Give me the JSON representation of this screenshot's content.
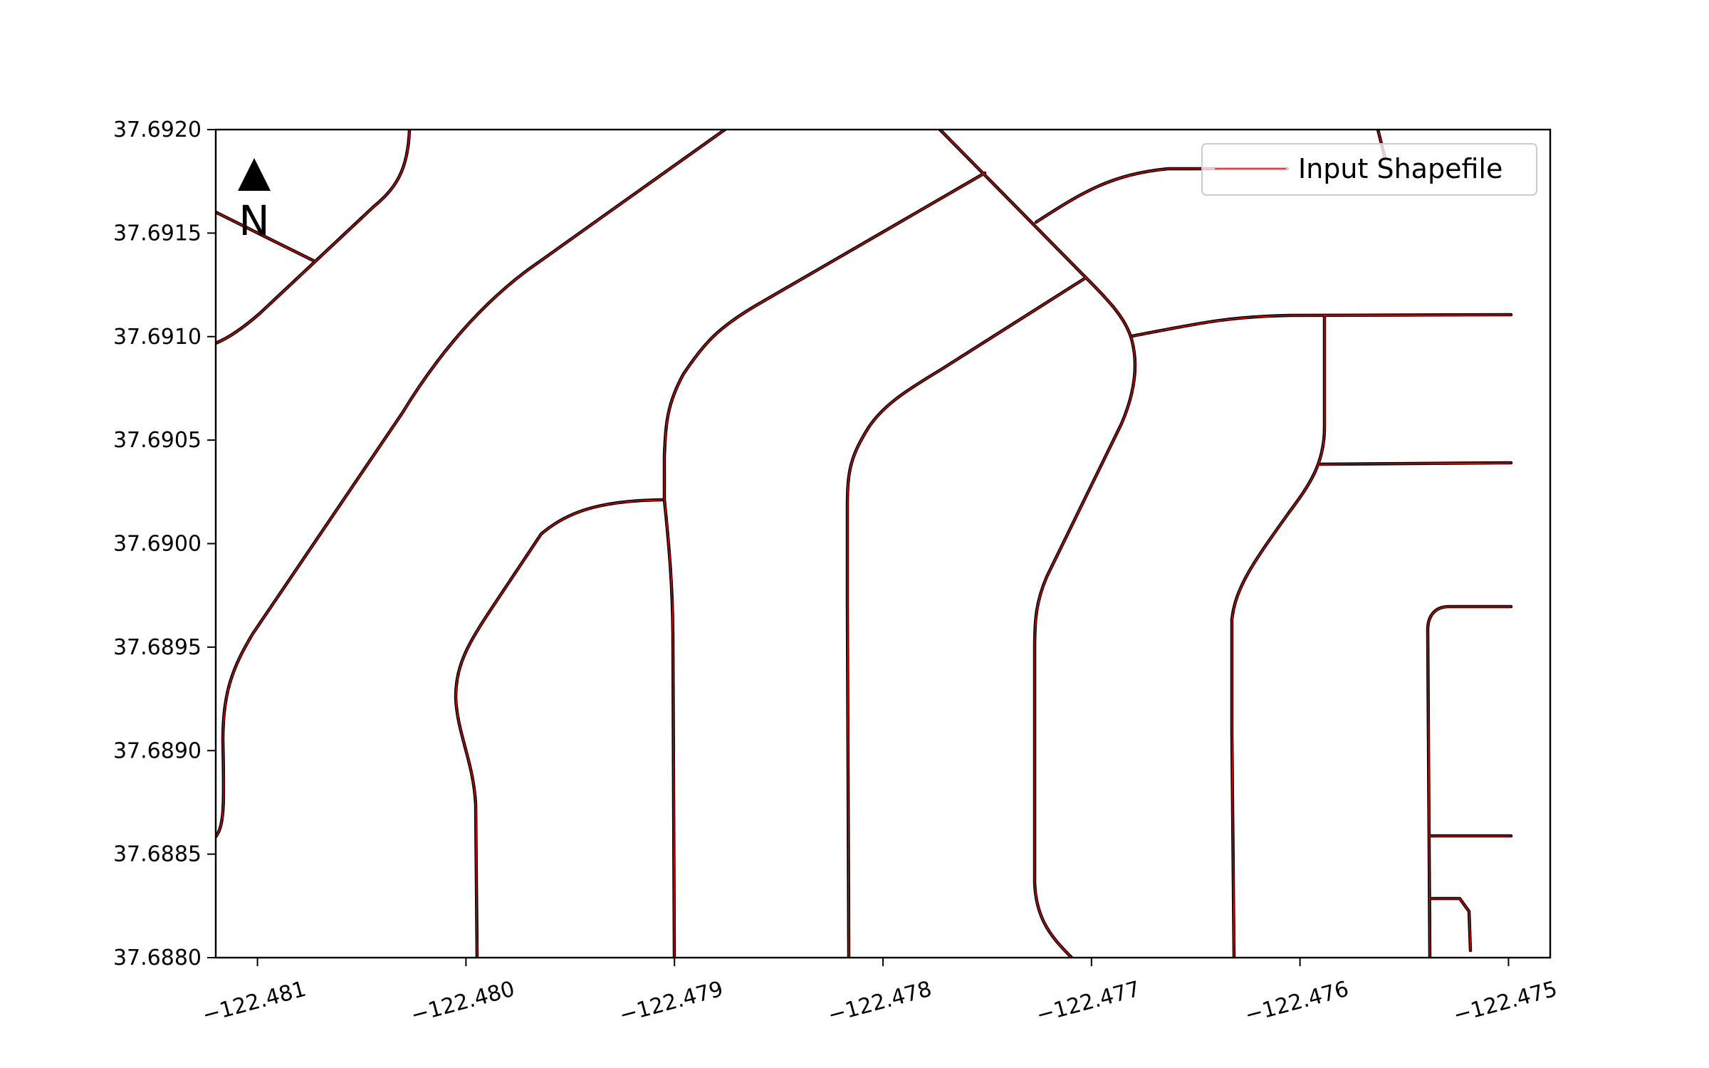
{
  "map": {
    "north_label": "N",
    "legend_label": "Input Shapefile",
    "line_color": "#ff0000",
    "casing_color": "#000000",
    "x_ticks": [
      "−122.481",
      "−122.480",
      "−122.479",
      "−122.478",
      "−122.477",
      "−122.476",
      "−122.475"
    ],
    "y_ticks": [
      "37.6920",
      "37.6915",
      "37.6910",
      "37.6905",
      "37.6900",
      "37.6895",
      "37.6890",
      "37.6885",
      "37.6880"
    ],
    "x_range": [
      -122.4812,
      -122.4748
    ],
    "y_range": [
      37.688,
      37.692
    ]
  }
}
